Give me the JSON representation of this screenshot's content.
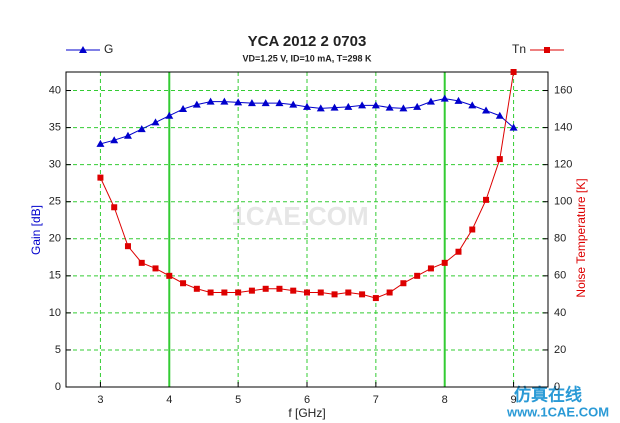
{
  "chart_data": {
    "type": "line",
    "title": "YCA 2012 2 0703",
    "subtitle": "VD=1.25 V, ID=10 mA, T=298 K",
    "x_label": "f [GHz]",
    "y_label": "Gain [dB]",
    "y2_label": "Noise Temperature [K]",
    "watermark": "1CAE.COM",
    "corner_watermark": [
      "仿真在线",
      "www.1CAE.COM"
    ],
    "x": [
      3.0,
      3.2,
      3.4,
      3.6,
      3.8,
      4.0,
      4.2,
      4.4,
      4.6,
      4.8,
      5.0,
      5.2,
      5.4,
      5.6,
      5.8,
      6.0,
      6.2,
      6.4,
      6.6,
      6.8,
      7.0,
      7.2,
      7.4,
      7.6,
      7.8,
      8.0,
      8.2,
      8.4,
      8.6,
      8.8,
      9.0
    ],
    "series": [
      {
        "name": "G",
        "color": "#0000cc",
        "marker": "triangle",
        "values": [
          32.8,
          33.3,
          33.9,
          34.8,
          35.7,
          36.6,
          37.5,
          38.1,
          38.5,
          38.5,
          38.4,
          38.3,
          38.3,
          38.3,
          38.1,
          37.8,
          37.6,
          37.7,
          37.8,
          38.0,
          38.0,
          37.7,
          37.6,
          37.8,
          38.5,
          38.9,
          38.6,
          38.0,
          37.3,
          36.6,
          35.0
        ]
      },
      {
        "name": "Tn",
        "color": "#dd0000",
        "marker": "square",
        "axis": "y2",
        "values": [
          113,
          97,
          76,
          67,
          64,
          60,
          56,
          53,
          51,
          51,
          51,
          52,
          53,
          53,
          52,
          51,
          51,
          50,
          51,
          50,
          48,
          51,
          56,
          60,
          64,
          67,
          73,
          85,
          101,
          123,
          170
        ]
      }
    ],
    "xlim": [
      2.5,
      9.5
    ],
    "xticks": [
      3,
      4,
      5,
      6,
      7,
      8,
      9
    ],
    "ylim": [
      0,
      42.5
    ],
    "yticks": [
      0,
      5,
      10,
      15,
      20,
      25,
      30,
      35,
      40
    ],
    "y2lim": [
      0,
      170
    ],
    "y2ticks": [
      0,
      20,
      40,
      60,
      80,
      100,
      120,
      140,
      160
    ],
    "grid": true,
    "grid_color": "#33cc33",
    "solid_x_gridlines": [
      4,
      8
    ]
  }
}
